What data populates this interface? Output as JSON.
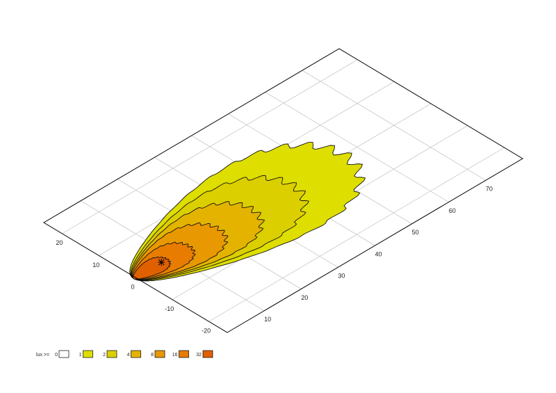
{
  "chart_data": {
    "type": "contour",
    "xlim": [
      0,
      80
    ],
    "xticks": [
      10,
      20,
      30,
      40,
      50,
      60,
      70
    ],
    "ylim": [
      -25,
      25
    ],
    "yticks": [
      -20,
      -10,
      0,
      10,
      20
    ],
    "grid": true,
    "legend_title": "lux >=",
    "levels": [
      0,
      1,
      2,
      4,
      8,
      16,
      32
    ],
    "colors": [
      "#ffffff",
      "#dede00",
      "#dccf00",
      "#e3b300",
      "#e89800",
      "#e87c00",
      "#e06000"
    ]
  }
}
